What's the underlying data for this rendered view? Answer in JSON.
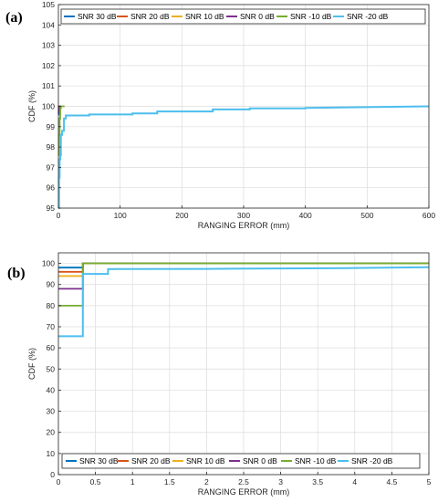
{
  "colors": {
    "axis": "#262626",
    "grid": "#dcdcdc",
    "series": [
      "#0072BD",
      "#D95319",
      "#EDB120",
      "#7E2F8E",
      "#77AC30",
      "#4DBEEE"
    ]
  },
  "chart_data": [
    {
      "type": "line",
      "panel_label": "(a)",
      "xlabel": "RANGING ERROR (mm)",
      "ylabel": "CDF (%)",
      "xlim": [
        0,
        600
      ],
      "ylim": [
        95,
        105
      ],
      "xticks": [
        0,
        100,
        200,
        300,
        400,
        500,
        600
      ],
      "yticks": [
        95,
        96,
        97,
        98,
        99,
        100,
        101,
        102,
        103,
        104,
        105
      ],
      "grid": true,
      "legend_position": "top",
      "series": [
        {
          "name": "SNR 30 dB",
          "x": [
            0,
            0.4,
            0.4,
            2
          ],
          "y": [
            99.6,
            99.6,
            100,
            100
          ]
        },
        {
          "name": "SNR 20 dB",
          "x": [
            0,
            0.6,
            0.6,
            3
          ],
          "y": [
            99.7,
            99.7,
            100,
            100
          ]
        },
        {
          "name": "SNR 10 dB",
          "x": [
            0,
            1,
            1,
            4
          ],
          "y": [
            99.8,
            99.8,
            100,
            100
          ]
        },
        {
          "name": "SNR 0 dB",
          "x": [
            0,
            1.5,
            1.5,
            5
          ],
          "y": [
            99.7,
            99.7,
            100,
            100
          ]
        },
        {
          "name": "SNR -10 dB",
          "x": [
            0,
            1,
            1,
            2,
            2,
            3,
            3,
            4,
            4,
            10
          ],
          "y": [
            97.6,
            97.6,
            98.6,
            98.6,
            99.4,
            99.4,
            99.9,
            99.9,
            100,
            100
          ]
        },
        {
          "name": "SNR -20 dB",
          "x": [
            0,
            1,
            1,
            2,
            2,
            3,
            3,
            4,
            4,
            6,
            6,
            9,
            9,
            12,
            12,
            50,
            50,
            120,
            120,
            160,
            160,
            250,
            250,
            310,
            310,
            400,
            400,
            600
          ],
          "y": [
            95,
            95,
            96.5,
            96.5,
            97.4,
            97.4,
            97.6,
            97.6,
            98.6,
            98.6,
            98.8,
            98.8,
            99.4,
            99.4,
            99.55,
            99.55,
            99.6,
            99.6,
            99.65,
            99.65,
            99.75,
            99.75,
            99.85,
            99.85,
            99.9,
            99.9,
            99.92,
            100
          ]
        }
      ]
    },
    {
      "type": "line",
      "panel_label": "(b)",
      "xlabel": "RANGING ERROR (mm)",
      "ylabel": "CDF (%)",
      "xlim": [
        0,
        5
      ],
      "ylim": [
        0,
        105
      ],
      "xticks": [
        0,
        0.5,
        1,
        1.5,
        2,
        2.5,
        3,
        3.5,
        4,
        4.5,
        5
      ],
      "yticks": [
        0,
        10,
        20,
        30,
        40,
        50,
        60,
        70,
        80,
        90,
        100
      ],
      "grid": true,
      "legend_position": "bottom",
      "series": [
        {
          "name": "SNR 30 dB",
          "x": [
            0,
            0.33,
            0.33,
            5
          ],
          "y": [
            98,
            98,
            100,
            100
          ]
        },
        {
          "name": "SNR 20 dB",
          "x": [
            0,
            0.33,
            0.33,
            5
          ],
          "y": [
            96,
            96,
            100,
            100
          ]
        },
        {
          "name": "SNR 10 dB",
          "x": [
            0,
            0.33,
            0.33,
            5
          ],
          "y": [
            94,
            94,
            100,
            100
          ]
        },
        {
          "name": "SNR 0 dB",
          "x": [
            0,
            0.33,
            0.33,
            5
          ],
          "y": [
            88,
            88,
            100,
            100
          ]
        },
        {
          "name": "SNR -10 dB",
          "x": [
            0,
            0.33,
            0.33,
            5
          ],
          "y": [
            80,
            80,
            100,
            100
          ]
        },
        {
          "name": "SNR -20 dB",
          "x": [
            0,
            0.33,
            0.33,
            0.67,
            0.67,
            2,
            3,
            4,
            5
          ],
          "y": [
            65.5,
            65.5,
            95,
            95,
            97.3,
            97.4,
            97.6,
            97.8,
            98.2
          ]
        }
      ]
    }
  ]
}
